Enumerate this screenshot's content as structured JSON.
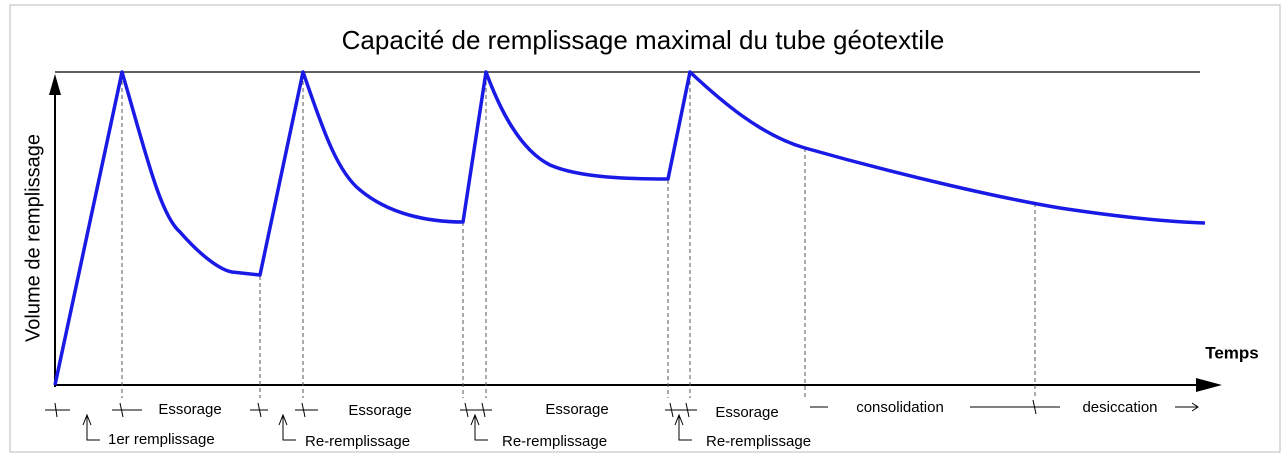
{
  "title": "Capacité de remplissage maximal du tube géotextile",
  "y_axis_label": "Volume de remplissage",
  "x_axis_label": "Temps",
  "phases": [
    "Essorage",
    "Essorage",
    "Essorage",
    "Essorage",
    "consolidation",
    "desiccation"
  ],
  "fillings": [
    "1er remplissage",
    "Re-remplissage",
    "Re-remplissage",
    "Re-remplissage"
  ]
}
